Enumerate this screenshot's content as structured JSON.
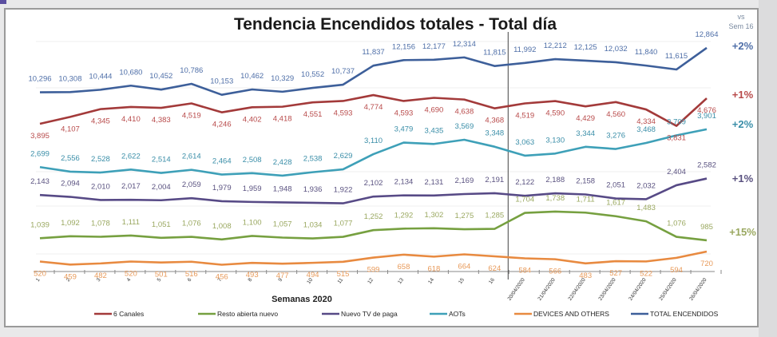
{
  "chart_data": {
    "type": "line",
    "title": "Tendencia Encendidos totales - Total día",
    "xlabel": "Semanas 2020",
    "ylabel": "",
    "comparison_header": [
      "vs",
      "Sem 16"
    ],
    "categories": [
      "1",
      "2",
      "3",
      "4",
      "5",
      "6",
      "7",
      "8",
      "9",
      "10",
      "11",
      "12",
      "13",
      "14",
      "15",
      "16",
      "20/04/2020",
      "21/04/2020",
      "22/04/2020",
      "23/04/2020",
      "24/04/2020",
      "25/04/2020",
      "26/04/2020"
    ],
    "divider_after_category": "16",
    "grid": true,
    "legend_position": "bottom",
    "series": [
      {
        "name": "TOTAL ENCENDIDOS",
        "color": "#3d5f9a",
        "label_color": "#4f6fa8",
        "change_vs_sem16": "+2%",
        "values": [
          10296,
          10308,
          10444,
          10680,
          10452,
          10786,
          10153,
          10462,
          10329,
          10552,
          10737,
          11837,
          12156,
          12177,
          12314,
          11815,
          11992,
          12212,
          12125,
          12032,
          11840,
          11615,
          12864
        ]
      },
      {
        "name": "6 Canales",
        "color": "#a33a3a",
        "label_color": "#b84a4a",
        "change_vs_sem16": "+1%",
        "values": [
          3895,
          4107,
          4345,
          4410,
          4383,
          4519,
          4246,
          4402,
          4418,
          4551,
          4593,
          4774,
          4593,
          4690,
          4638,
          4368,
          4519,
          4590,
          4429,
          4560,
          4334,
          3831,
          4676
        ]
      },
      {
        "name": "AOTs",
        "color": "#3ea0b8",
        "label_color": "#3a8ea8",
        "change_vs_sem16": "+2%",
        "values": [
          2699,
          2556,
          2528,
          2622,
          2514,
          2614,
          2464,
          2508,
          2428,
          2538,
          2629,
          3110,
          3479,
          3435,
          3569,
          3348,
          3063,
          3130,
          3344,
          3276,
          3468,
          3709,
          3901
        ]
      },
      {
        "name": "Nuevo TV de paga",
        "color": "#574a86",
        "label_color": "#5a5280",
        "change_vs_sem16": "+1%",
        "values": [
          2143,
          2094,
          2010,
          2017,
          2004,
          2059,
          1979,
          1959,
          1948,
          1936,
          1922,
          2102,
          2134,
          2131,
          2169,
          2191,
          2122,
          2188,
          2158,
          2051,
          2032,
          2404,
          2582
        ]
      },
      {
        "name": "Resto abierta nuevo",
        "color": "#76a040",
        "label_color": "#9aa860",
        "change_vs_sem16": "+15%",
        "values": [
          1039,
          1092,
          1078,
          1111,
          1051,
          1076,
          1008,
          1100,
          1057,
          1034,
          1077,
          1252,
          1292,
          1302,
          1275,
          1285,
          1704,
          1738,
          1711,
          1617,
          1483,
          1076,
          985
        ]
      },
      {
        "name": "DEVICES AND OTHERS",
        "color": "#e88a40",
        "label_color": "#e89a5a",
        "change_vs_sem16": "",
        "values": [
          520,
          459,
          482,
          520,
          501,
          516,
          456,
          493,
          477,
          494,
          515,
          599,
          658,
          618,
          664,
          624,
          584,
          566,
          483,
          527,
          522,
          594,
          720
        ]
      }
    ],
    "legend_order": [
      "6 Canales",
      "Resto abierta nuevo",
      "Nuevo TV de paga",
      "AOTs",
      "DEVICES AND OTHERS",
      "TOTAL ENCENDIDOS"
    ]
  }
}
